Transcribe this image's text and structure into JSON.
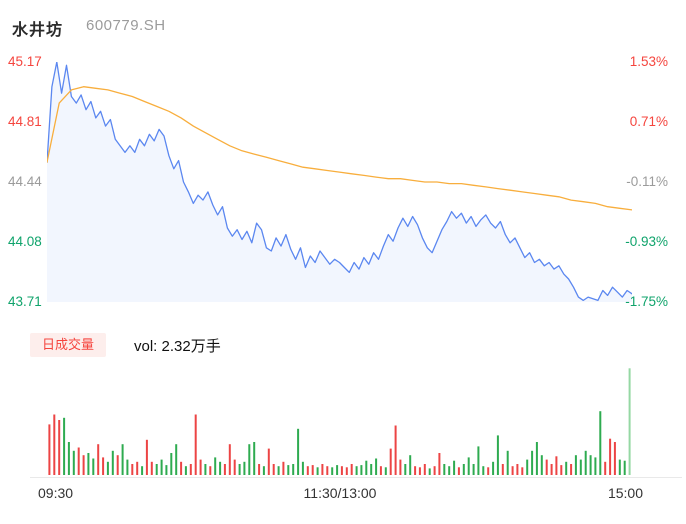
{
  "header": {
    "title": "水井坊",
    "code": "600779.SH"
  },
  "colors": {
    "up_text": "#f5453e",
    "down_text": "#0fa36b",
    "flat_text": "#9b9b9b",
    "price_line": "#5b87f0",
    "price_fill": "rgba(91,135,240,0.08)",
    "avg_line": "#f8ae3d",
    "vol_up": "#ec4444",
    "vol_down": "#2eab50",
    "vol_close_auction": "#95d8a4",
    "badge_bg": "#fdeeec"
  },
  "chart_data": {
    "type": "line",
    "title": "水井坊 600779.SH 分时图",
    "x": {
      "start": "09:30",
      "mid": "11:30/13:00",
      "end": "15:00",
      "total_minutes": 240
    },
    "price_pane": {
      "ylim": [
        43.71,
        45.17
      ],
      "yticks_left": [
        {
          "label": "45.17",
          "tone": "up"
        },
        {
          "label": "44.81",
          "tone": "up"
        },
        {
          "label": "44.44",
          "tone": "flat"
        },
        {
          "label": "44.08",
          "tone": "down"
        },
        {
          "label": "43.71",
          "tone": "down"
        }
      ],
      "yticks_right": [
        {
          "label": "1.53%",
          "tone": "up"
        },
        {
          "label": "0.71%",
          "tone": "up"
        },
        {
          "label": "-0.11%",
          "tone": "flat"
        },
        {
          "label": "-0.93%",
          "tone": "down"
        },
        {
          "label": "-1.75%",
          "tone": "down"
        }
      ],
      "series": [
        {
          "name": "price",
          "step_minutes": 2,
          "fill": true,
          "values": [
            44.56,
            45.02,
            45.17,
            44.98,
            45.15,
            44.96,
            44.92,
            44.97,
            44.88,
            44.93,
            44.83,
            44.87,
            44.78,
            44.82,
            44.7,
            44.66,
            44.62,
            44.66,
            44.62,
            44.7,
            44.66,
            44.73,
            44.69,
            44.76,
            44.72,
            44.6,
            44.52,
            44.57,
            44.44,
            44.38,
            44.31,
            44.36,
            44.33,
            44.38,
            44.3,
            44.24,
            44.29,
            44.16,
            44.11,
            44.15,
            44.09,
            44.14,
            44.07,
            44.19,
            44.15,
            44.04,
            44.02,
            44.1,
            44.05,
            44.12,
            44.03,
            43.97,
            44.04,
            43.92,
            43.99,
            43.95,
            44.02,
            43.98,
            43.94,
            43.97,
            43.95,
            43.92,
            43.89,
            43.95,
            43.91,
            43.98,
            43.94,
            44.01,
            43.97,
            44.05,
            44.12,
            44.08,
            44.16,
            44.22,
            44.17,
            44.23,
            44.18,
            44.1,
            44.04,
            44.01,
            44.08,
            44.15,
            44.2,
            44.26,
            44.22,
            44.25,
            44.19,
            44.23,
            44.17,
            44.21,
            44.24,
            44.19,
            44.16,
            44.2,
            44.12,
            44.07,
            44.1,
            44.04,
            43.98,
            44.01,
            43.95,
            43.97,
            43.93,
            43.95,
            43.91,
            43.93,
            43.88,
            43.85,
            43.8,
            43.74,
            43.72,
            43.74,
            43.73,
            43.72,
            43.78,
            43.75,
            43.8,
            43.77,
            43.74,
            43.78,
            43.76
          ]
        },
        {
          "name": "avg_price",
          "step_minutes": 5,
          "fill": false,
          "values": [
            44.56,
            44.92,
            45.0,
            45.02,
            45.01,
            45.0,
            44.98,
            44.96,
            44.93,
            44.9,
            44.87,
            44.83,
            44.78,
            44.74,
            44.7,
            44.66,
            44.63,
            44.61,
            44.59,
            44.57,
            44.55,
            44.53,
            44.52,
            44.51,
            44.5,
            44.49,
            44.48,
            44.47,
            44.46,
            44.46,
            44.45,
            44.44,
            44.44,
            44.43,
            44.43,
            44.42,
            44.41,
            44.4,
            44.39,
            44.38,
            44.37,
            44.36,
            44.35,
            44.33,
            44.32,
            44.31,
            44.29,
            44.28,
            44.27
          ]
        }
      ]
    },
    "volume_pane": {
      "legend": "日成交量",
      "vol_label": "vol: 2.32万手",
      "bar_count": 120,
      "heights": [
        0.46,
        0.55,
        0.5,
        0.52,
        0.3,
        0.22,
        0.25,
        0.18,
        0.2,
        0.15,
        0.28,
        0.16,
        0.12,
        0.22,
        0.18,
        0.28,
        0.14,
        0.1,
        0.12,
        0.08,
        0.32,
        0.12,
        0.1,
        0.14,
        0.09,
        0.2,
        0.28,
        0.12,
        0.08,
        0.1,
        0.55,
        0.14,
        0.1,
        0.08,
        0.16,
        0.12,
        0.1,
        0.28,
        0.14,
        0.1,
        0.12,
        0.28,
        0.3,
        0.1,
        0.08,
        0.24,
        0.1,
        0.08,
        0.12,
        0.09,
        0.1,
        0.42,
        0.12,
        0.08,
        0.09,
        0.07,
        0.1,
        0.08,
        0.07,
        0.09,
        0.08,
        0.07,
        0.1,
        0.08,
        0.09,
        0.13,
        0.1,
        0.15,
        0.08,
        0.07,
        0.24,
        0.45,
        0.14,
        0.1,
        0.18,
        0.08,
        0.07,
        0.1,
        0.06,
        0.08,
        0.2,
        0.1,
        0.08,
        0.13,
        0.07,
        0.1,
        0.16,
        0.1,
        0.26,
        0.08,
        0.07,
        0.12,
        0.36,
        0.1,
        0.22,
        0.08,
        0.1,
        0.07,
        0.14,
        0.22,
        0.3,
        0.18,
        0.14,
        0.1,
        0.17,
        0.09,
        0.12,
        0.1,
        0.18,
        0.14,
        0.22,
        0.18,
        0.16,
        0.58,
        0.12,
        0.33,
        0.3,
        0.14,
        0.13,
        0.97
      ],
      "bar_tones": [
        "r",
        "r",
        "r",
        "g",
        "g",
        "g",
        "r",
        "r",
        "g",
        "g",
        "r",
        "r",
        "g",
        "g",
        "r",
        "g",
        "g",
        "r",
        "r",
        "g",
        "r",
        "r",
        "g",
        "g",
        "g",
        "g",
        "g",
        "r",
        "g",
        "r",
        "r",
        "r",
        "g",
        "r",
        "g",
        "g",
        "r",
        "r",
        "r",
        "g",
        "g",
        "g",
        "g",
        "r",
        "g",
        "r",
        "r",
        "g",
        "r",
        "g",
        "g",
        "g",
        "g",
        "r",
        "r",
        "g",
        "r",
        "r",
        "g",
        "g",
        "r",
        "r",
        "r",
        "g",
        "g",
        "g",
        "g",
        "g",
        "r",
        "g",
        "r",
        "r",
        "r",
        "g",
        "g",
        "r",
        "r",
        "r",
        "g",
        "r",
        "r",
        "g",
        "g",
        "g",
        "r",
        "g",
        "g",
        "g",
        "g",
        "g",
        "r",
        "g",
        "g",
        "r",
        "g",
        "r",
        "r",
        "r",
        "g",
        "g",
        "g",
        "g",
        "r",
        "r",
        "r",
        "r",
        "g",
        "r",
        "g",
        "g",
        "g",
        "g",
        "g",
        "g",
        "r",
        "r",
        "r",
        "g",
        "g",
        "lg"
      ]
    }
  }
}
